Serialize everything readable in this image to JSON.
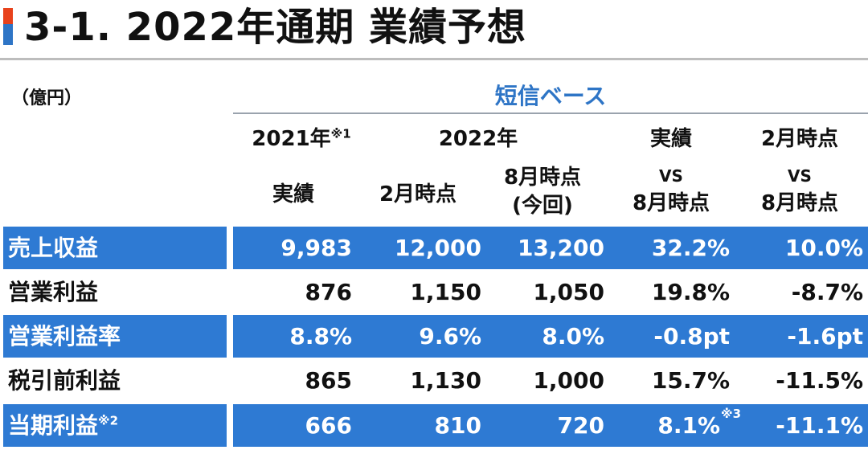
{
  "page": {
    "title": "3-1. 2022年通期 業績予想",
    "unit": "（億円）",
    "basis": "短信ベース",
    "colors": {
      "accent_red": "#e8421c",
      "accent_blue": "#2e75c6",
      "row_blue": "#2e7ad3"
    }
  },
  "header": {
    "col1_year": "2021年",
    "col1_note": "※1",
    "col1_sub": "実績",
    "group_2022": "2022年",
    "col2_sub": "2月時点",
    "col3_sub_line1": "8月時点",
    "col3_sub_line2": "(今回)",
    "col4_line1": "実績",
    "col4_line2": "VS",
    "col4_line3": "8月時点",
    "col5_line1": "2月時点",
    "col5_line2": "VS",
    "col5_line3": "8月時点"
  },
  "rows": [
    {
      "label": "売上収益",
      "label_note": "",
      "values": [
        "9,983",
        "12,000",
        "13,200",
        "32.2%",
        "10.0%"
      ],
      "c4_note": ""
    },
    {
      "label": "営業利益",
      "label_note": "",
      "values": [
        "876",
        "1,150",
        "1,050",
        "19.8%",
        "-8.7%"
      ],
      "c4_note": ""
    },
    {
      "label": "営業利益率",
      "label_note": "",
      "values": [
        "8.8%",
        "9.6%",
        "8.0%",
        "-0.8pt",
        "-1.6pt"
      ],
      "c4_note": ""
    },
    {
      "label": "税引前利益",
      "label_note": "",
      "values": [
        "865",
        "1,130",
        "1,000",
        "15.7%",
        "-11.5%"
      ],
      "c4_note": ""
    },
    {
      "label": "当期利益",
      "label_note": "※2",
      "values": [
        "666",
        "810",
        "720",
        "8.1%",
        "-11.1%"
      ],
      "c4_note": "※3"
    }
  ]
}
